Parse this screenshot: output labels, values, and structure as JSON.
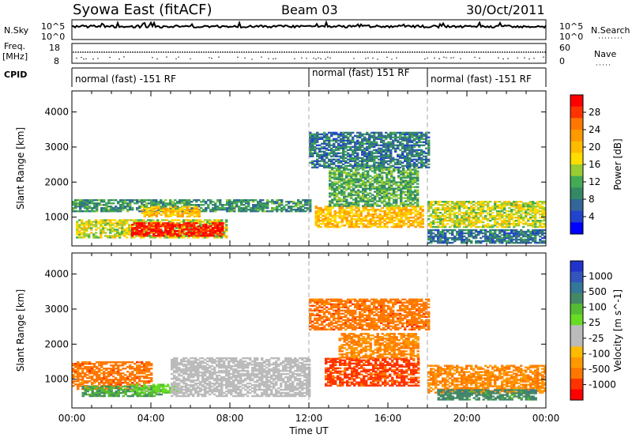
{
  "header": {
    "title_left": "Syowa East (fitACF)",
    "title_center": "Beam 03",
    "title_right": "30/Oct/2011"
  },
  "strip_panels": {
    "nsky_label": "N.Sky",
    "nsky_ticks": [
      "10^5",
      "10^0"
    ],
    "nsearch_label": "N.Search",
    "nsearch_ticks": [
      "10^5",
      "10^0"
    ],
    "freq_label_line1": "Freq.",
    "freq_label_line2": "[MHz]",
    "freq_ticks": [
      "18",
      "8"
    ],
    "nave_label": "Nave",
    "nave_ticks": [
      "60",
      "0"
    ],
    "cpid_label": "CPID",
    "cpid_segments": [
      {
        "label": "normal (fast) -151 RF",
        "start_h": 0,
        "end_h": 12
      },
      {
        "label": "normal (fast) 151 RF",
        "start_h": 12,
        "end_h": 18
      },
      {
        "label": "normal (fast) -151 RF",
        "start_h": 18,
        "end_h": 24
      }
    ]
  },
  "colorbars": {
    "power": {
      "label": "Power [dB]",
      "ticks": [
        "28",
        "24",
        "20",
        "16",
        "12",
        "8",
        "4"
      ],
      "colors_top_to_bottom": [
        "#ff0000",
        "#ff3300",
        "#ff7700",
        "#ff9900",
        "#ffbb00",
        "#ffdd00",
        "#99cc33",
        "#44aa55",
        "#338866",
        "#336699",
        "#2244cc",
        "#0000ff"
      ]
    },
    "velocity": {
      "label": "Velocity [m s^-1]",
      "ticks": [
        "1000",
        "500",
        "100",
        "25",
        "-25",
        "-100",
        "-500",
        "-1000"
      ],
      "colors_top_to_bottom": [
        "#2233cc",
        "#3355bb",
        "#337799",
        "#448866",
        "#55bb33",
        "#66dd22",
        "#bbbbbb",
        "#bbbbbb",
        "#ffbb00",
        "#ff9900",
        "#ff7700",
        "#ff3300",
        "#ff0000"
      ]
    }
  },
  "chart_data": [
    {
      "type": "heatmap",
      "title": "Power",
      "xlabel": "",
      "ylabel": "Slant Range [km]",
      "x_ticks": [
        "00:00",
        "04:00",
        "08:00",
        "12:00",
        "16:00",
        "20:00",
        "00:00"
      ],
      "y_ticks": [
        "1000",
        "2000",
        "3000",
        "4000"
      ],
      "xlim_hours": [
        0,
        24
      ],
      "ylim_km": [
        180,
        4600
      ],
      "regions": [
        {
          "t0": 0.0,
          "t1": 12.0,
          "r0": 1150,
          "r1": 1500,
          "value_db": 10
        },
        {
          "t0": 0.2,
          "t1": 7.8,
          "r0": 400,
          "r1": 900,
          "value_db": 16
        },
        {
          "t0": 3.0,
          "t1": 7.6,
          "r0": 450,
          "r1": 850,
          "value_db": 30
        },
        {
          "t0": 3.5,
          "t1": 6.5,
          "r0": 1000,
          "r1": 1300,
          "value_db": 20
        },
        {
          "t0": 12.3,
          "t1": 17.8,
          "r0": 700,
          "r1": 1300,
          "value_db": 20
        },
        {
          "t0": 13.0,
          "t1": 17.5,
          "r0": 1300,
          "r1": 2400,
          "value_db": 12
        },
        {
          "t0": 12.0,
          "t1": 18.0,
          "r0": 2400,
          "r1": 3400,
          "value_db": 8
        },
        {
          "t0": 18.0,
          "t1": 24.0,
          "r0": 700,
          "r1": 1450,
          "value_db": 16
        },
        {
          "t0": 18.0,
          "t1": 24.0,
          "r0": 250,
          "r1": 650,
          "value_db": 8
        }
      ]
    },
    {
      "type": "heatmap",
      "title": "Velocity",
      "xlabel": "Time UT",
      "ylabel": "Slant Range [km]",
      "x_ticks": [
        "00:00",
        "04:00",
        "08:00",
        "12:00",
        "16:00",
        "20:00",
        "00:00"
      ],
      "y_ticks": [
        "1000",
        "2000",
        "3000",
        "4000"
      ],
      "xlim_hours": [
        0,
        24
      ],
      "ylim_km": [
        180,
        4600
      ],
      "regions": [
        {
          "t0": 0.0,
          "t1": 4.0,
          "r0": 700,
          "r1": 1500,
          "value_ms": -300
        },
        {
          "t0": 0.5,
          "t1": 4.5,
          "r0": 500,
          "r1": 800,
          "value_ms": 200
        },
        {
          "t0": 3.0,
          "t1": 5.5,
          "r0": 600,
          "r1": 850,
          "value_ms": 60
        },
        {
          "t0": 5.0,
          "t1": 12.0,
          "r0": 500,
          "r1": 1600,
          "value_ms": 0
        },
        {
          "t0": 12.8,
          "t1": 17.5,
          "r0": 800,
          "r1": 1600,
          "value_ms": -500
        },
        {
          "t0": 13.5,
          "t1": 17.5,
          "r0": 1600,
          "r1": 2300,
          "value_ms": -200
        },
        {
          "t0": 12.0,
          "t1": 18.0,
          "r0": 2400,
          "r1": 3300,
          "value_ms": -300
        },
        {
          "t0": 18.0,
          "t1": 24.0,
          "r0": 600,
          "r1": 1400,
          "value_ms": -200
        },
        {
          "t0": 18.5,
          "t1": 23.5,
          "r0": 400,
          "r1": 700,
          "value_ms": 300
        }
      ]
    }
  ]
}
